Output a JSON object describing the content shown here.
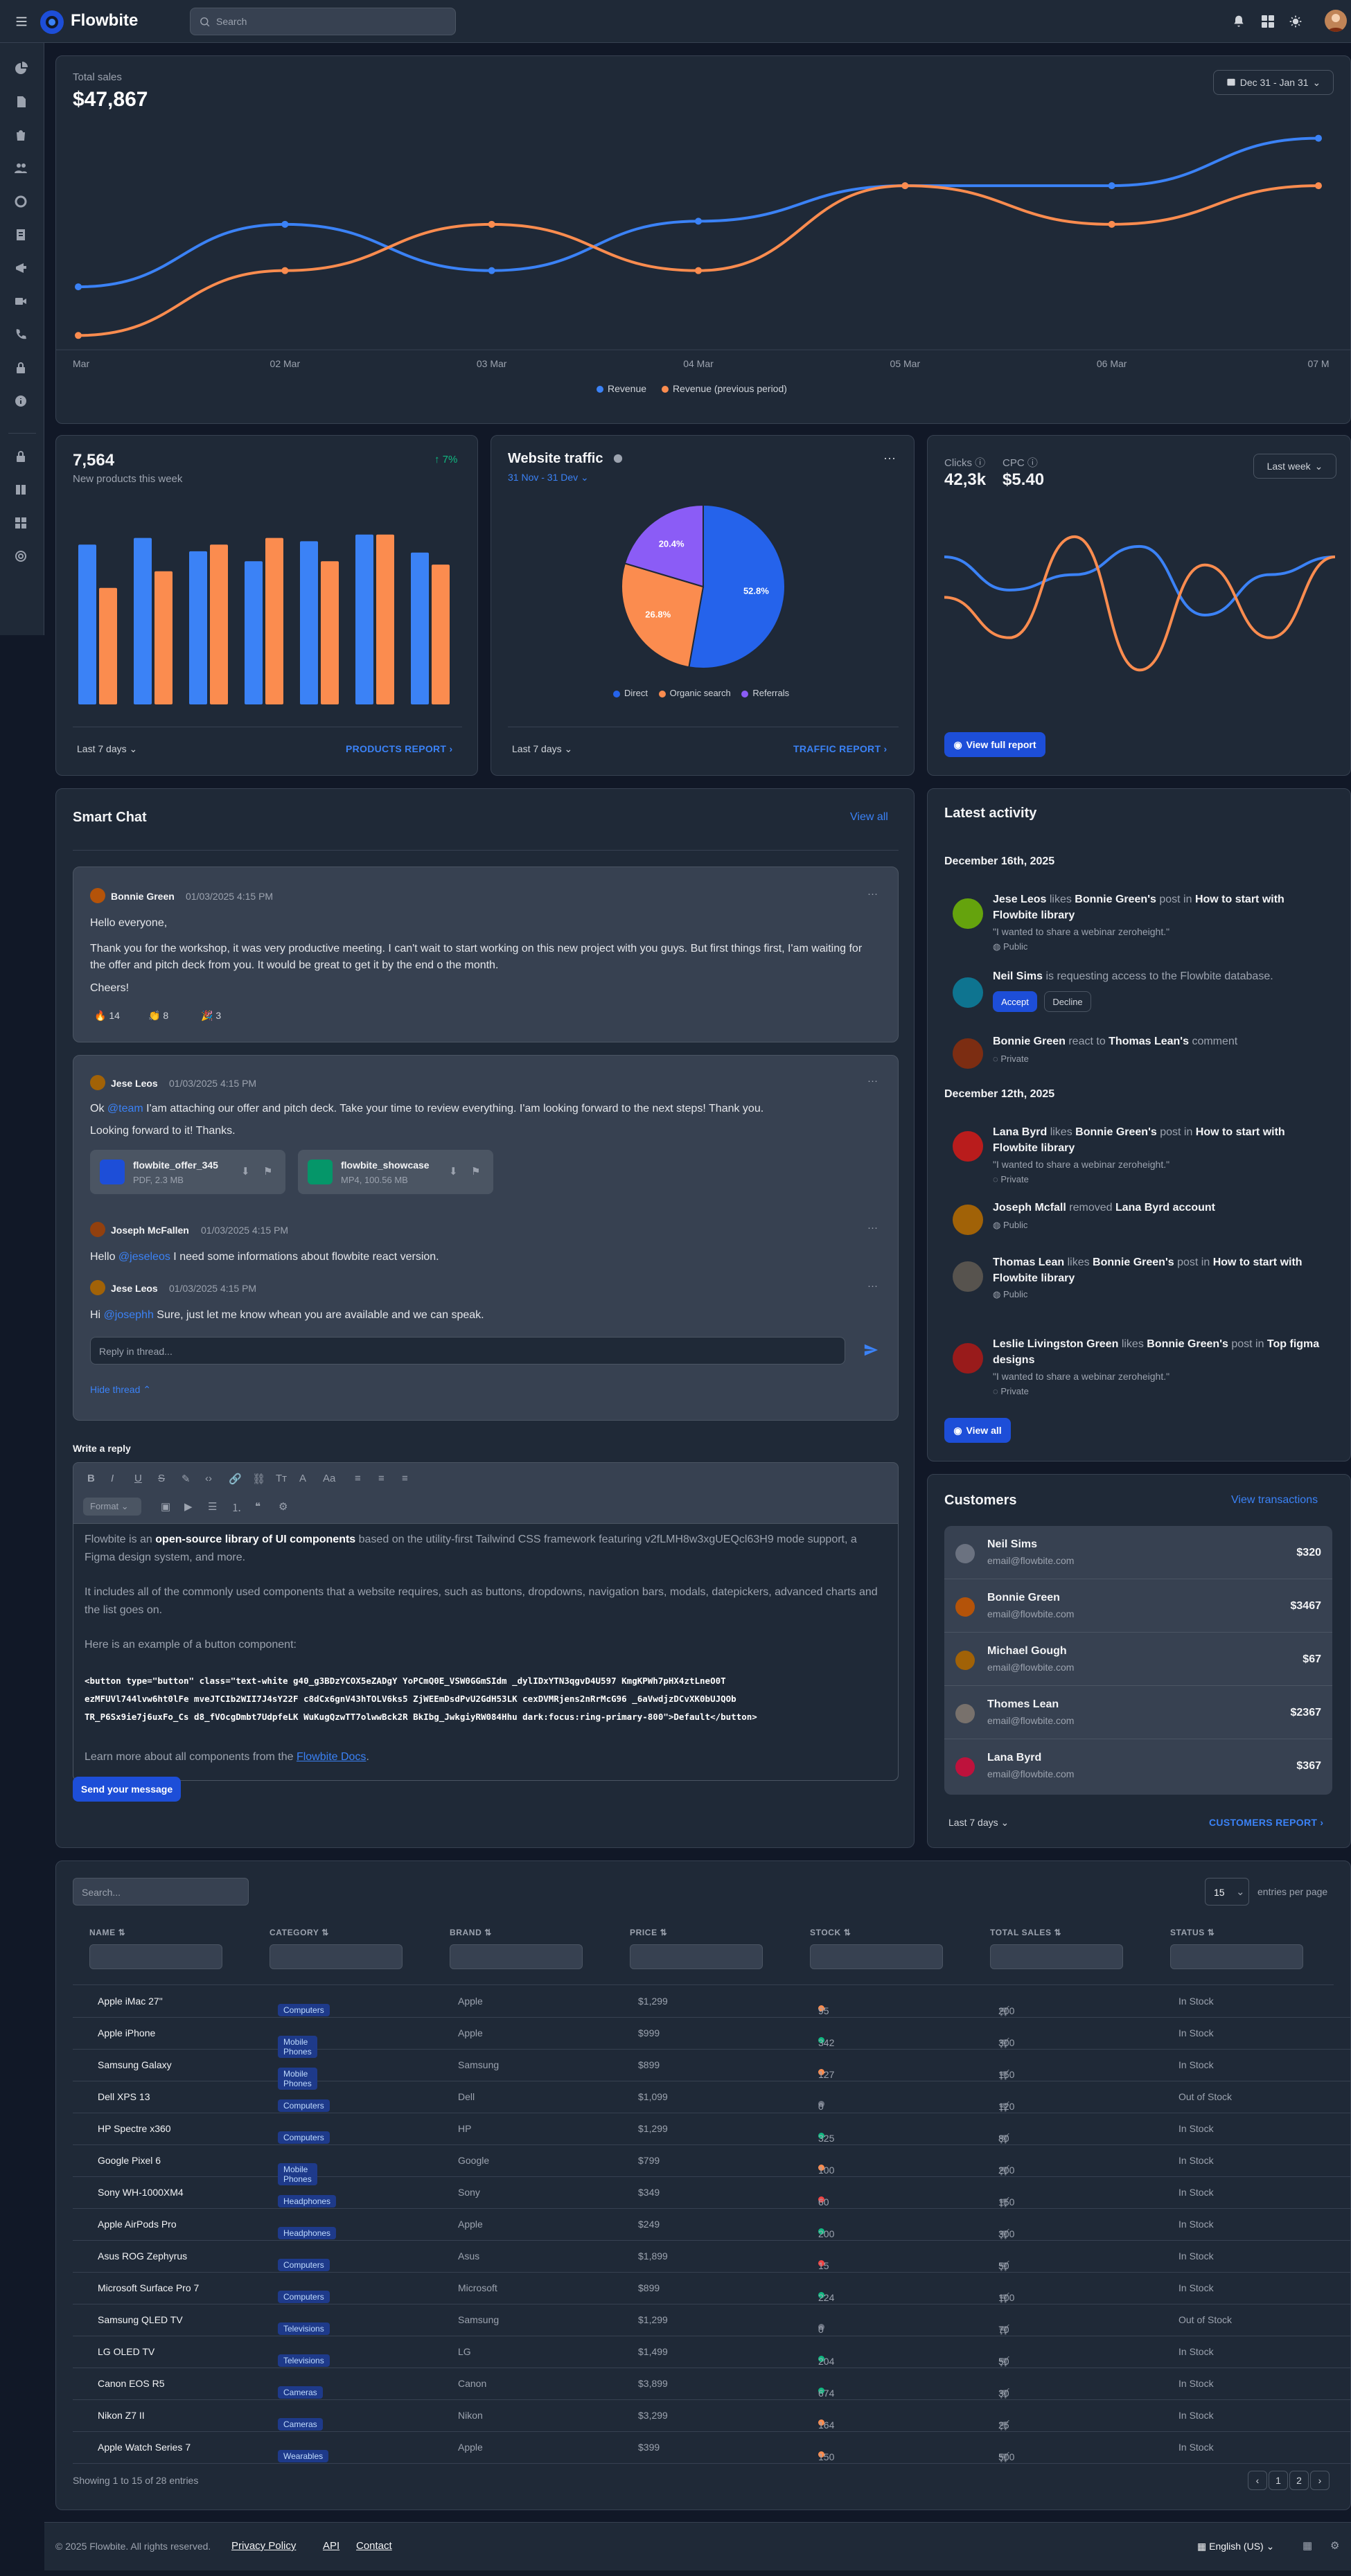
{
  "navbar": {
    "brand": "Flowbite",
    "search_placeholder": "Search"
  },
  "sales": {
    "label": "Total sales",
    "value": "$47,867",
    "date_range": "Dec 31 - Jan 31",
    "x_labels": [
      "Mar",
      "02 Mar",
      "03 Mar",
      "04 Mar",
      "05 Mar",
      "06 Mar",
      "07 M"
    ],
    "legend": [
      "Revenue",
      "Revenue (previous period)"
    ]
  },
  "chart_data": [
    {
      "type": "line",
      "x": [
        "01 Mar",
        "02 Mar",
        "03 Mar",
        "04 Mar",
        "05 Mar",
        "06 Mar",
        "07 Mar"
      ],
      "series": [
        {
          "name": "Revenue",
          "color": "#3b82f6",
          "values": [
            6356,
            6518,
            6398,
            6526,
            6618,
            6618,
            6741
          ]
        },
        {
          "name": "Revenue (previous period)",
          "color": "#fb8c4f",
          "values": [
            6230,
            6398,
            6518,
            6398,
            6618,
            6518,
            6618
          ]
        }
      ]
    },
    {
      "type": "bar",
      "categories": [
        "1",
        "2",
        "3",
        "4",
        "5",
        "6",
        "7"
      ],
      "series": [
        {
          "name": "blue",
          "color": "#3b82f6",
          "values": [
            240,
            250,
            230,
            215,
            245,
            255,
            228
          ]
        },
        {
          "name": "orange",
          "color": "#fb8c4f",
          "values": [
            175,
            200,
            240,
            250,
            215,
            255,
            210
          ]
        }
      ]
    },
    {
      "type": "pie",
      "categories": [
        "Direct",
        "Organic search",
        "Referrals"
      ],
      "values": [
        52.8,
        26.8,
        20.4
      ],
      "colors": [
        "#2563eb",
        "#fb8c4f",
        "#8b5cf6"
      ]
    },
    {
      "type": "line",
      "series": [
        {
          "name": "Clicks",
          "color": "#3b82f6",
          "values": [
            6500,
            6418,
            6456,
            6526,
            6356,
            6456,
            6500
          ]
        },
        {
          "name": "CPC",
          "color": "#fb8c4f",
          "values": [
            6400,
            6300,
            6550,
            6220,
            6480,
            6300,
            6500
          ]
        }
      ]
    }
  ],
  "products": {
    "value": "7,564",
    "label": "New products this week",
    "change": "7%",
    "period": "Last 7 days",
    "report": "PRODUCTS REPORT"
  },
  "traffic": {
    "title": "Website traffic",
    "range": "31 Nov - 31 Dev",
    "labels": [
      "52.8%",
      "26.8%",
      "20.4%"
    ],
    "legend": [
      "Direct",
      "Organic search",
      "Referrals"
    ],
    "period": "Last 7 days",
    "report": "TRAFFIC REPORT"
  },
  "clicks": {
    "clicks_label": "Clicks",
    "clicks_value": "42,3k",
    "cpc_label": "CPC",
    "cpc_value": "$5.40",
    "period": "Last week",
    "button": "View full report"
  },
  "chat": {
    "title": "Smart Chat",
    "view_all": "View all",
    "m1": {
      "name": "Bonnie Green",
      "time": "01/03/2025 4:15 PM",
      "p1": "Hello everyone,",
      "p2": "Thank you for the workshop, it was very productive meeting. I can't wait to start working on this new project with you guys. But first things first, I'am waiting for the offer and pitch deck from you. It would be great to get it by the end o the month.",
      "p3": "Cheers!",
      "r1": "14",
      "r2": "8",
      "r3": "3"
    },
    "m2": {
      "name": "Jese Leos",
      "time": "01/03/2025 4:15 PM",
      "p1a": "Ok ",
      "mention": "@team",
      "p1b": " I'am attaching our offer and pitch deck. Take your time to review everything. I'am looking forward to the next steps! Thank you.",
      "p2": "Looking forward to it! Thanks.",
      "f1_name": "flowbite_offer_345",
      "f1_meta": "PDF, 2.3 MB",
      "f2_name": "flowbite_showcase",
      "f2_meta": "MP4, 100.56 MB"
    },
    "m3": {
      "name": "Joseph McFallen",
      "time": "01/03/2025 4:15 PM",
      "p1a": "Hello ",
      "mention": "@jeseleos",
      "p1b": " I need some informations about flowbite react version."
    },
    "m4": {
      "name": "Jese Leos",
      "time": "01/03/2025 4:15 PM",
      "p1a": "Hi ",
      "mention": "@josephh",
      "p1b": " Sure, just let me know whean you are available and we can speak."
    },
    "reply_placeholder": "Reply in thread...",
    "hide_thread": "Hide thread",
    "write_label": "Write a reply",
    "format_label": "Format",
    "editor": {
      "p1a": "Flowbite is an ",
      "p1b": "open-source library of UI components",
      "p1c": " based on the utility-first Tailwind CSS framework featuring v2fLMH8w3xgUEQcl63H9 mode support, a Figma design system, and more.",
      "p2": "It includes all of the commonly used components that a website requires, such as buttons, dropdowns, navigation bars, modals, datepickers, advanced charts and the list goes on.",
      "p3": "Here is an example of a button component:",
      "code1": "<button type=\"button\" class=\"text-white g40_g3BDzYCOX5eZADgY YoPCmQ0E_VSW0GGmSIdm _dylIDxYTN3qgvD4U597 KmgKPWh7pHX4ztLneO0T",
      "code2": "ezMFUVl744lvw6ht0lFe mveJTCIb2WII7J4sY22F c8dCx6gnV43hTOLV6ks5 ZjWEEmDsdPvU2GdH53LK cexDVMRjens2nRrMcG96 _6aVwdjzDCvXK0bUJQOb",
      "code3": "TR_P6Sx9ie7j6uxFo_Cs d8_fVOcgDmbt7UdpfeLK WuKugQzwTT7olwwBck2R BkIbg_JwkgiyRW084Hhu dark:focus:ring-primary-800\">Default</button>",
      "p4a": "Learn more about all components from the ",
      "p4b": "Flowbite Docs",
      "p4c": "."
    },
    "send": "Send your message"
  },
  "activity": {
    "title": "Latest activity",
    "date1": "December 16th, 2025",
    "date2": "December 12th, 2025",
    "items": [
      {
        "a": "Jese Leos",
        "v": " likes ",
        "b": "Bonnie Green's",
        "v2": " post in ",
        "c": "How to start with Flowbite library",
        "quote": "\"I wanted to share a webinar zeroheight.\"",
        "priv": "Public"
      },
      {
        "a": "Neil Sims",
        "v": " is requesting access to the Flowbite database.",
        "accept": "Accept",
        "decline": "Decline"
      },
      {
        "a": "Bonnie Green",
        "v": " react to ",
        "b": "Thomas Lean's",
        "v2": " comment",
        "priv": "Private"
      },
      {
        "a": "Lana Byrd",
        "v": " likes ",
        "b": "Bonnie Green's",
        "v2": " post in ",
        "c": "How to start with Flowbite library",
        "quote": "\"I wanted to share a webinar zeroheight.\"",
        "priv": "Private"
      },
      {
        "a": "Joseph Mcfall",
        "v": " removed ",
        "b": "Lana Byrd account",
        "priv": "Public"
      },
      {
        "a": "Thomas Lean",
        "v": " likes ",
        "b": "Bonnie Green's",
        "v2": " post in ",
        "c": "How to start with Flowbite library",
        "priv": "Public"
      },
      {
        "a": "Leslie Livingston Green",
        "v": " likes ",
        "b": "Bonnie Green's",
        "v2": " post in ",
        "c": "Top figma designs",
        "quote": "\"I wanted to share a webinar zeroheight.\"",
        "priv": "Private"
      }
    ],
    "view_all": "View all"
  },
  "customers": {
    "title": "Customers",
    "link": "View transactions",
    "rows": [
      {
        "name": "Neil Sims",
        "email": "email@flowbite.com",
        "amount": "$320"
      },
      {
        "name": "Bonnie Green",
        "email": "email@flowbite.com",
        "amount": "$3467"
      },
      {
        "name": "Michael Gough",
        "email": "email@flowbite.com",
        "amount": "$67"
      },
      {
        "name": "Thomes Lean",
        "email": "email@flowbite.com",
        "amount": "$2367"
      },
      {
        "name": "Lana Byrd",
        "email": "email@flowbite.com",
        "amount": "$367"
      }
    ],
    "period": "Last 7 days",
    "report": "CUSTOMERS REPORT"
  },
  "table": {
    "search_placeholder": "Search...",
    "per_page": "15",
    "per_page_label": "entries per page",
    "headers": [
      "NAME",
      "CATEGORY",
      "BRAND",
      "PRICE",
      "STOCK",
      "TOTAL SALES",
      "STATUS"
    ],
    "rows": [
      {
        "name": "Apple iMac 27\"",
        "cat": "Computers",
        "brand": "Apple",
        "price": "$1,299",
        "stock": "95",
        "sc": "#fb8c4f",
        "sales": "200",
        "status": "In Stock"
      },
      {
        "name": "Apple iPhone",
        "cat": "Mobile Phones",
        "brand": "Apple",
        "price": "$999",
        "stock": "342",
        "sc": "#10b981",
        "sales": "300",
        "status": "In Stock"
      },
      {
        "name": "Samsung Galaxy",
        "cat": "Mobile Phones",
        "brand": "Samsung",
        "price": "$899",
        "stock": "127",
        "sc": "#fb8c4f",
        "sales": "150",
        "status": "In Stock"
      },
      {
        "name": "Dell XPS 13",
        "cat": "Computers",
        "brand": "Dell",
        "price": "$1,099",
        "stock": "0",
        "sc": "#6b7280",
        "sales": "120",
        "status": "Out of Stock"
      },
      {
        "name": "HP Spectre x360",
        "cat": "Computers",
        "brand": "HP",
        "price": "$1,299",
        "stock": "325",
        "sc": "#10b981",
        "sales": "80",
        "status": "In Stock"
      },
      {
        "name": "Google Pixel 6",
        "cat": "Mobile Phones",
        "brand": "Google",
        "price": "$799",
        "stock": "100",
        "sc": "#fb8c4f",
        "sales": "200",
        "status": "In Stock"
      },
      {
        "name": "Sony WH-1000XM4",
        "cat": "Headphones",
        "brand": "Sony",
        "price": "$349",
        "stock": "60",
        "sc": "#ef4444",
        "sales": "150",
        "status": "In Stock"
      },
      {
        "name": "Apple AirPods Pro",
        "cat": "Headphones",
        "brand": "Apple",
        "price": "$249",
        "stock": "200",
        "sc": "#10b981",
        "sales": "300",
        "status": "In Stock"
      },
      {
        "name": "Asus ROG Zephyrus",
        "cat": "Computers",
        "brand": "Asus",
        "price": "$1,899",
        "stock": "15",
        "sc": "#ef4444",
        "sales": "50",
        "status": "In Stock"
      },
      {
        "name": "Microsoft Surface Pro 7",
        "cat": "Computers",
        "brand": "Microsoft",
        "price": "$899",
        "stock": "224",
        "sc": "#10b981",
        "sales": "100",
        "status": "In Stock"
      },
      {
        "name": "Samsung QLED TV",
        "cat": "Televisions",
        "brand": "Samsung",
        "price": "$1,299",
        "stock": "0",
        "sc": "#6b7280",
        "sales": "70",
        "status": "Out of Stock"
      },
      {
        "name": "LG OLED TV",
        "cat": "Televisions",
        "brand": "LG",
        "price": "$1,499",
        "stock": "204",
        "sc": "#10b981",
        "sales": "50",
        "status": "In Stock"
      },
      {
        "name": "Canon EOS R5",
        "cat": "Cameras",
        "brand": "Canon",
        "price": "$3,899",
        "stock": "674",
        "sc": "#10b981",
        "sales": "30",
        "status": "In Stock"
      },
      {
        "name": "Nikon Z7 II",
        "cat": "Cameras",
        "brand": "Nikon",
        "price": "$3,299",
        "stock": "164",
        "sc": "#fb8c4f",
        "sales": "25",
        "status": "In Stock"
      },
      {
        "name": "Apple Watch Series 7",
        "cat": "Wearables",
        "brand": "Apple",
        "price": "$399",
        "stock": "150",
        "sc": "#fb8c4f",
        "sales": "500",
        "status": "In Stock"
      }
    ],
    "showing": "Showing 1 to 15 of 28 entries",
    "pages": [
      "1",
      "2"
    ]
  },
  "footer": {
    "copyright": "© 2025 Flowbite. All rights reserved.",
    "links": [
      "Privacy Policy",
      "API",
      "Contact"
    ],
    "language": "English (US)"
  }
}
